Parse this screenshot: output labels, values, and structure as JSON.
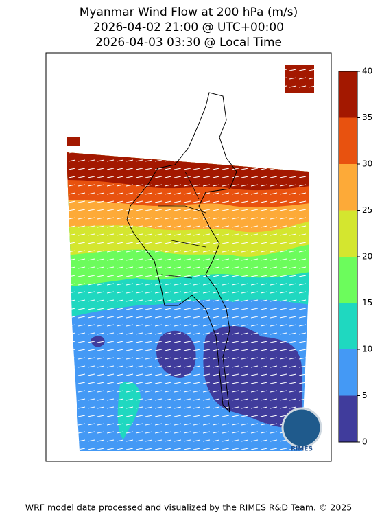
{
  "title": [
    "Myanmar Wind Flow at 200 hPa (m/s)",
    "2026-04-02 21:00 @ UTC+00:00",
    "2026-04-03 03:30 @ Local Time"
  ],
  "colorbar": {
    "ticks": [
      0,
      5,
      10,
      15,
      20,
      25,
      30,
      35,
      40
    ],
    "colors": [
      "#403c9c",
      "#4499f5",
      "#1fd8c0",
      "#6cfc5c",
      "#d4e62f",
      "#fdaa38",
      "#e8520f",
      "#a31800"
    ]
  },
  "logo": "RIMES",
  "footer": "WRF model data processed and visualized by the RIMES R&D Team. © 2025"
}
